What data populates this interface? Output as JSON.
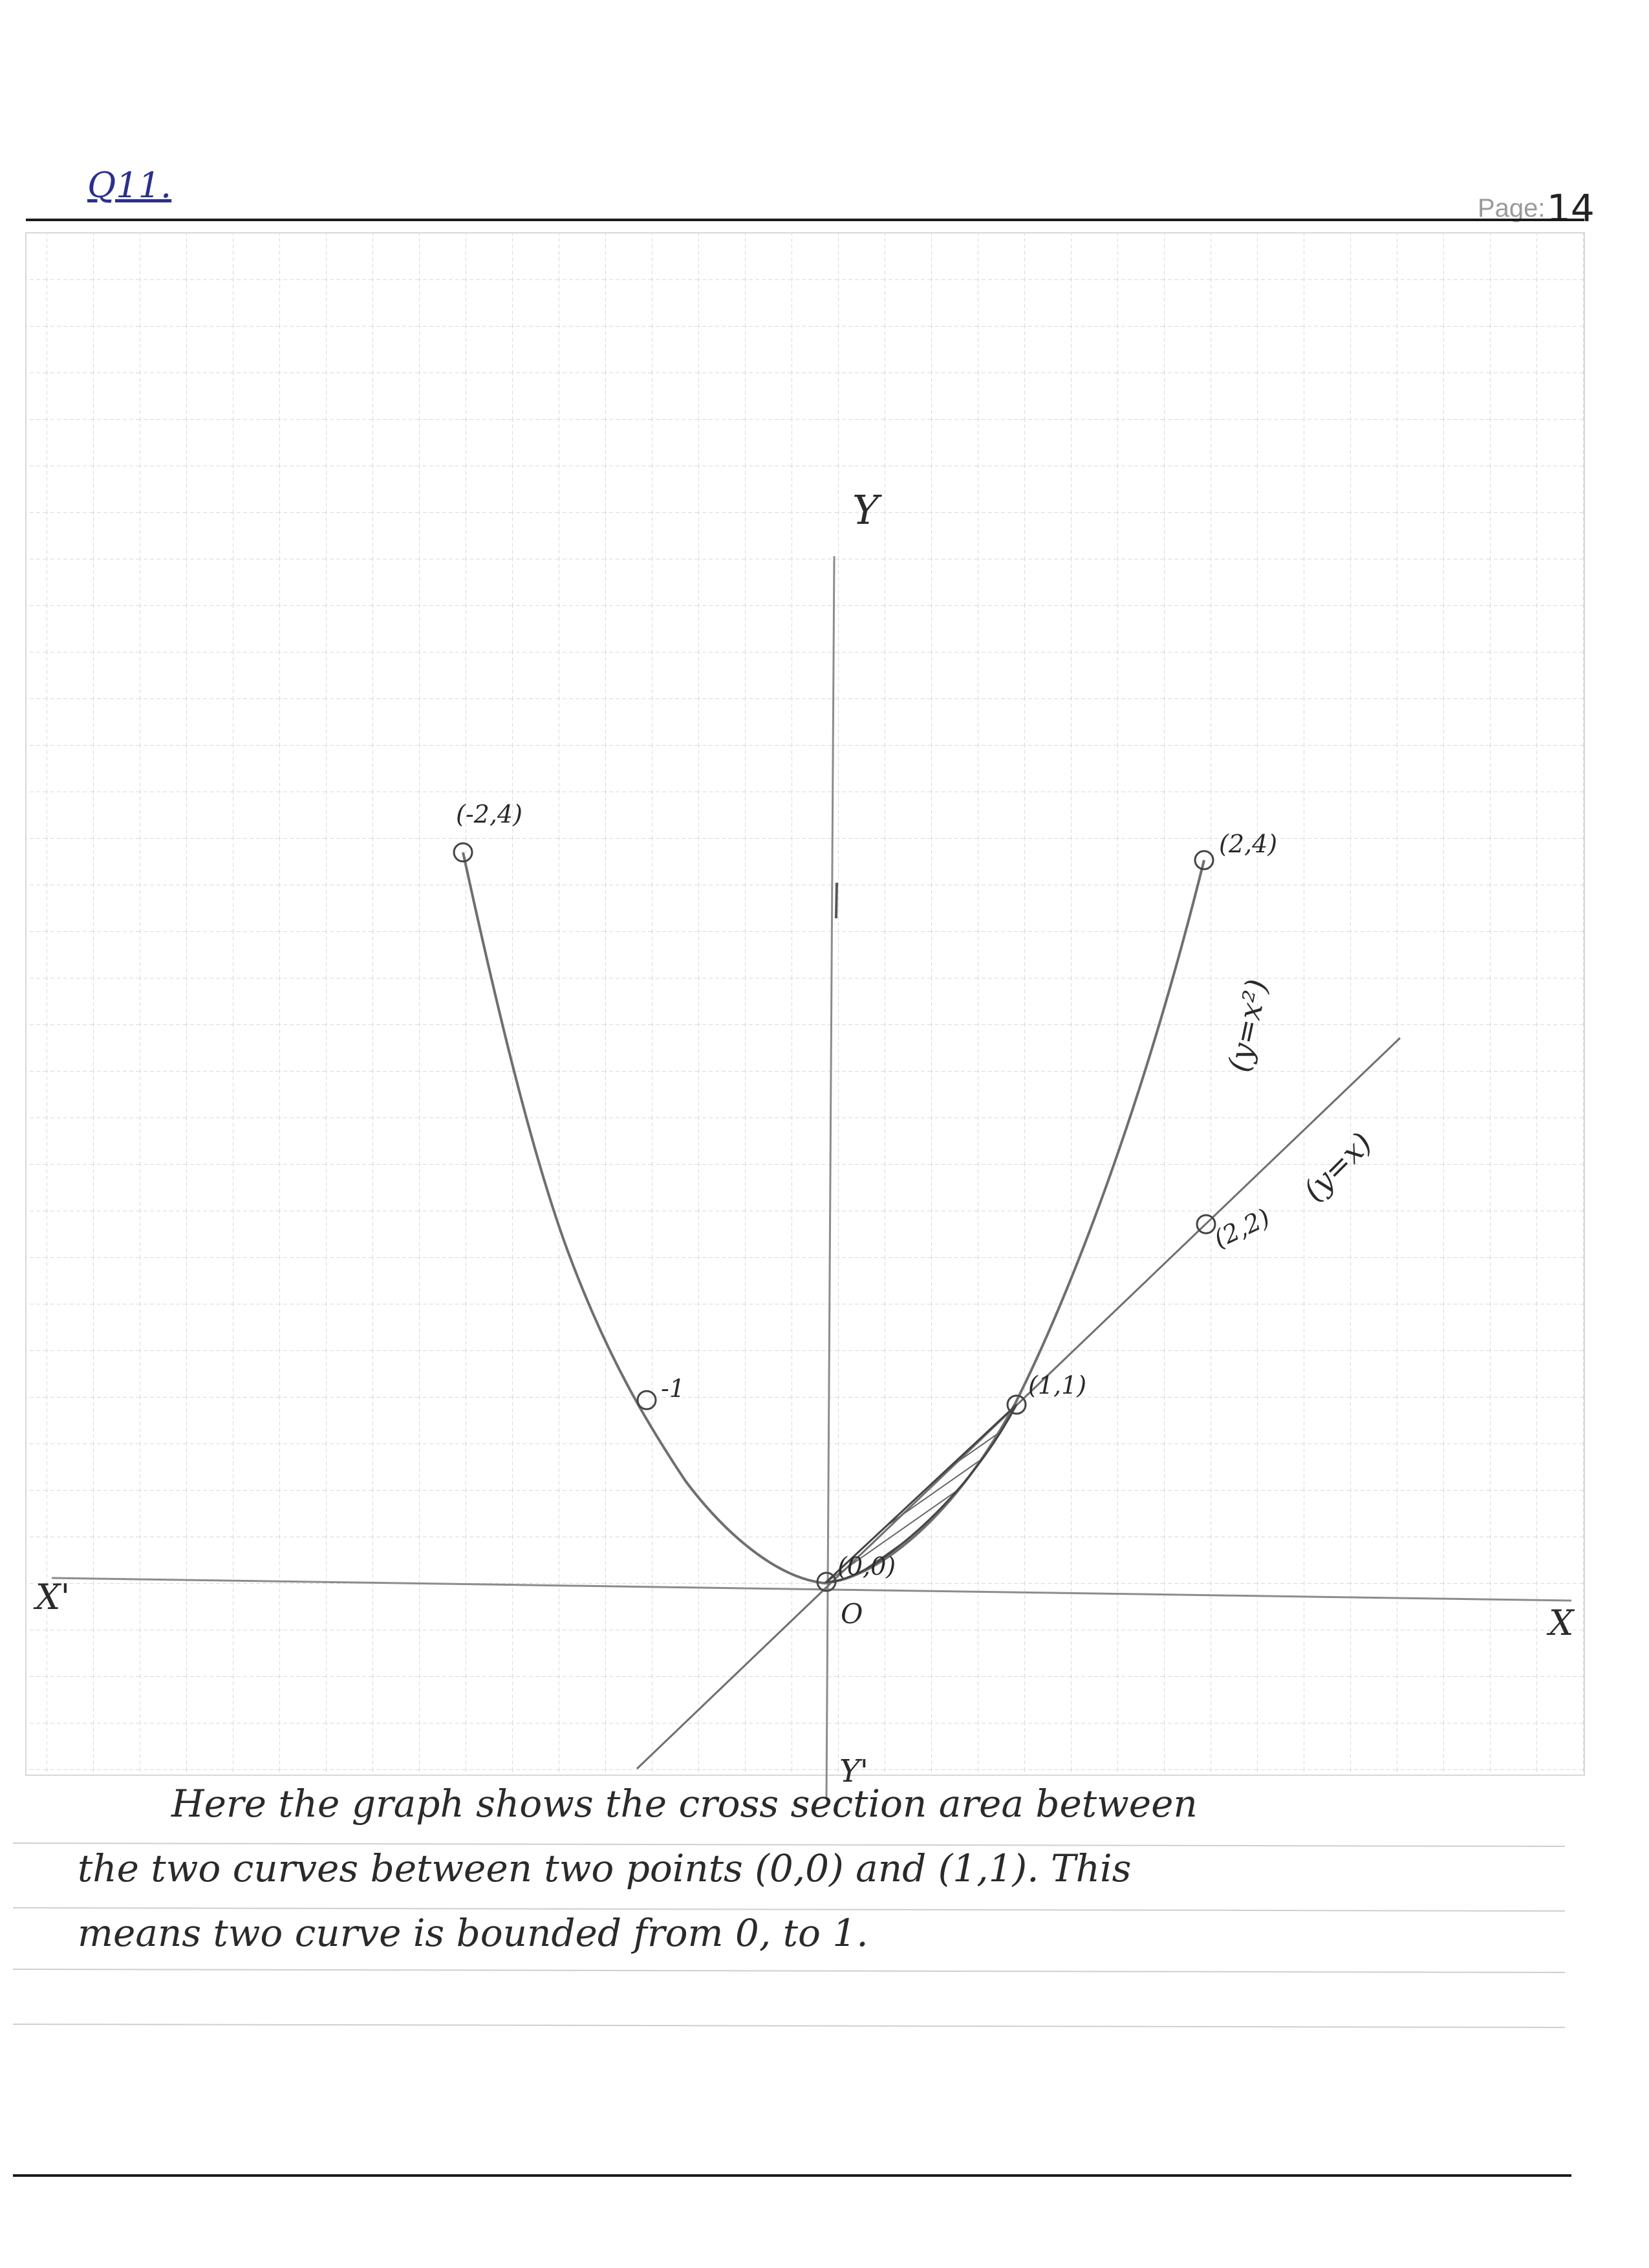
{
  "header": {
    "question_label": "Q11.",
    "page_label": "Page:",
    "page_number": "14"
  },
  "graph": {
    "axis_labels": {
      "y_pos": "Y",
      "y_neg": "Y'",
      "x_pos": "X",
      "x_neg": "X'",
      "origin": "O"
    },
    "curve_parabola": {
      "label": "(y=x²)",
      "points": [
        "(-2,4)",
        "-1",
        "(2,4)"
      ]
    },
    "curve_line": {
      "label": "(y=x)",
      "points": [
        "(2,2)"
      ]
    },
    "intersections": [
      "(0,0)",
      "(1,1)"
    ]
  },
  "note": {
    "line1": "Here the graph shows the cross section area between",
    "line2": "the two curves between two points (0,0) and (1,1). This",
    "line3": "means two curve is bounded from 0, to 1."
  }
}
